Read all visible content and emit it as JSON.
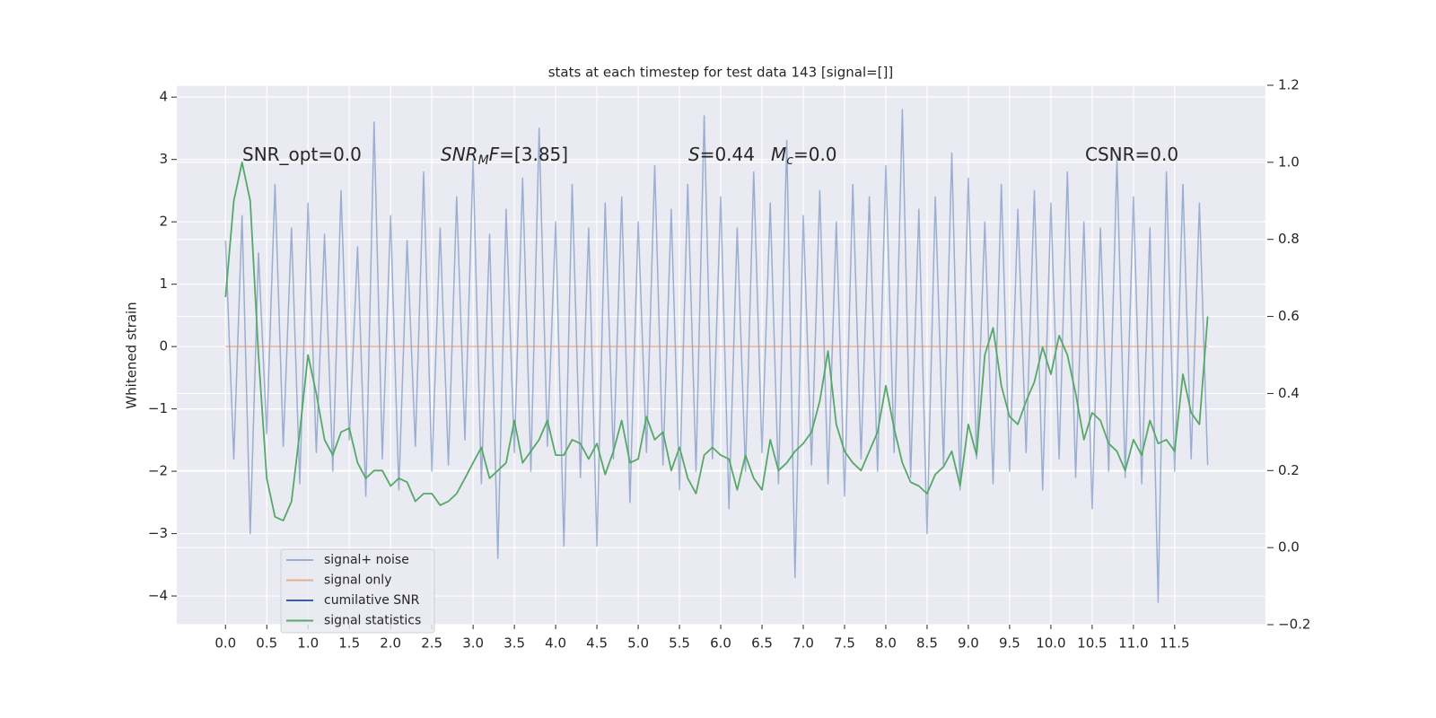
{
  "chart_data": {
    "type": "line",
    "title": "stats at each timestep for test data 143 [signal=[]]",
    "ylabel": "Whitened strain",
    "grid": true,
    "legend": "lower left",
    "xlim": [
      -0.59,
      12.6
    ],
    "ylim": [
      -4.46,
      4.19
    ],
    "y2lim": [
      -0.2,
      1.2
    ],
    "xticks": [
      {
        "value": 0,
        "label": "0.0"
      },
      {
        "value": 0.5,
        "label": "0.5"
      },
      {
        "value": 1,
        "label": "1.0"
      },
      {
        "value": 1.5,
        "label": "1.5"
      },
      {
        "value": 2,
        "label": "2.0"
      },
      {
        "value": 2.5,
        "label": "2.5"
      },
      {
        "value": 3,
        "label": "3.0"
      },
      {
        "value": 3.5,
        "label": "3.5"
      },
      {
        "value": 4,
        "label": "4.0"
      },
      {
        "value": 4.5,
        "label": "4.5"
      },
      {
        "value": 5,
        "label": "5.0"
      },
      {
        "value": 5.5,
        "label": "5.5"
      },
      {
        "value": 6,
        "label": "6.0"
      },
      {
        "value": 6.5,
        "label": "6.5"
      },
      {
        "value": 7,
        "label": "7.0"
      },
      {
        "value": 7.5,
        "label": "7.5"
      },
      {
        "value": 8,
        "label": "8.0"
      },
      {
        "value": 8.5,
        "label": "8.5"
      },
      {
        "value": 9,
        "label": "9.0"
      },
      {
        "value": 9.5,
        "label": "9.5"
      },
      {
        "value": 10,
        "label": "10.0"
      },
      {
        "value": 10.5,
        "label": "10.5"
      },
      {
        "value": 11,
        "label": "11.0"
      },
      {
        "value": 11.5,
        "label": "11.5"
      }
    ],
    "yticks": [
      {
        "value": -4,
        "label": "−4"
      },
      {
        "value": -3,
        "label": "−3"
      },
      {
        "value": -2,
        "label": "−2"
      },
      {
        "value": -1,
        "label": "−1"
      },
      0,
      1,
      2,
      3,
      4
    ],
    "y2ticks": [
      {
        "value": -0.2,
        "label": "−0.2"
      },
      {
        "value": 0,
        "label": "0.0"
      },
      {
        "value": 0.2,
        "label": "0.2"
      },
      {
        "value": 0.4,
        "label": "0.4"
      },
      {
        "value": 0.6,
        "label": "0.6"
      },
      {
        "value": 0.8,
        "label": "0.8"
      },
      {
        "value": 1,
        "label": "1.0"
      },
      {
        "value": 1.2,
        "label": "1.2"
      }
    ],
    "annotations": [
      [
        {
          "text": "SNR_opt=0.0"
        }
      ],
      [
        {
          "text": "SNR",
          "italic": true
        },
        {
          "text": "M",
          "italic": true,
          "sub": true
        },
        {
          "text": "F",
          "italic": true
        },
        {
          "text": "=[3.85]"
        }
      ],
      [
        {
          "text": "S",
          "italic": true
        },
        {
          "text": "=0.44"
        }
      ],
      [
        {
          "text": "M",
          "italic": true
        },
        {
          "text": "c",
          "italic": true,
          "sub": true
        },
        {
          "text": "=0.0"
        }
      ],
      [
        {
          "text": "CSNR=0.0"
        }
      ]
    ],
    "x": [
      0,
      0.1,
      0.2,
      0.3,
      0.4,
      0.5,
      0.6,
      0.7,
      0.8,
      0.9,
      1,
      1.1,
      1.2,
      1.3,
      1.4,
      1.5,
      1.6,
      1.7,
      1.8,
      1.9,
      2,
      2.1,
      2.2,
      2.3,
      2.4,
      2.5,
      2.6,
      2.7,
      2.8,
      2.9,
      3,
      3.1,
      3.2,
      3.3,
      3.4,
      3.5,
      3.6,
      3.7,
      3.8,
      3.9,
      4,
      4.1,
      4.2,
      4.3,
      4.4,
      4.5,
      4.6,
      4.7,
      4.8,
      4.9,
      5,
      5.1,
      5.2,
      5.3,
      5.4,
      5.5,
      5.6,
      5.7,
      5.8,
      5.9,
      6,
      6.1,
      6.2,
      6.3,
      6.4,
      6.5,
      6.6,
      6.7,
      6.8,
      6.9,
      7,
      7.1,
      7.2,
      7.3,
      7.4,
      7.5,
      7.6,
      7.7,
      7.8,
      7.9,
      8,
      8.1,
      8.2,
      8.3,
      8.4,
      8.5,
      8.6,
      8.7,
      8.8,
      8.9,
      9,
      9.1,
      9.2,
      9.3,
      9.4,
      9.5,
      9.6,
      9.7,
      9.8,
      9.9,
      10,
      10.1,
      10.2,
      10.3,
      10.4,
      10.5,
      10.6,
      10.7,
      10.8,
      10.9,
      11,
      11.1,
      11.2,
      11.3,
      11.4,
      11.5,
      11.6,
      11.7,
      11.8,
      11.9
    ],
    "series": [
      {
        "name": "signal+ noise",
        "color": "#4c72b0",
        "opacity": 0.5,
        "values": [
          1.7,
          -1.8,
          2.1,
          -3.0,
          1.5,
          -1.4,
          2.6,
          -1.6,
          1.9,
          -2.2,
          2.3,
          -1.7,
          1.8,
          -2.0,
          2.5,
          -1.5,
          1.6,
          -2.4,
          3.6,
          -1.8,
          2.1,
          -2.3,
          1.7,
          -1.6,
          2.8,
          -2.0,
          1.9,
          -1.9,
          2.4,
          -1.5,
          3.0,
          -2.2,
          1.8,
          -3.4,
          2.2,
          -1.7,
          2.7,
          -2.0,
          3.5,
          -1.6,
          2.0,
          -3.2,
          2.6,
          -2.1,
          1.9,
          -3.2,
          2.3,
          -1.8,
          2.4,
          -2.5,
          2.0,
          -1.7,
          2.9,
          -1.9,
          2.2,
          -2.3,
          2.6,
          -2.0,
          3.7,
          -1.8,
          2.4,
          -2.6,
          1.9,
          -2.0,
          2.8,
          -1.7,
          2.3,
          -2.2,
          3.3,
          -3.7,
          2.1,
          -1.9,
          2.5,
          -2.2,
          2.0,
          -2.4,
          2.6,
          -1.8,
          2.4,
          -2.0,
          2.9,
          -1.7,
          3.8,
          -2.1,
          2.2,
          -3.0,
          2.4,
          -1.9,
          3.1,
          -2.3,
          2.7,
          -1.8,
          2.0,
          -2.2,
          2.6,
          -2.0,
          2.2,
          -1.7,
          2.5,
          -2.3,
          2.3,
          -1.8,
          2.8,
          -2.1,
          2.0,
          -2.6,
          1.9,
          -2.0,
          3.0,
          -2.1,
          2.4,
          -2.2,
          1.9,
          -4.1,
          2.8,
          -2.0,
          2.6,
          -1.8,
          2.3,
          -1.9
        ]
      },
      {
        "name": "signal only",
        "color": "#dd8452",
        "opacity": 0.6,
        "values": [
          0,
          0,
          0,
          0,
          0,
          0,
          0,
          0,
          0,
          0,
          0,
          0,
          0,
          0,
          0,
          0,
          0,
          0,
          0,
          0,
          0,
          0,
          0,
          0,
          0,
          0,
          0,
          0,
          0,
          0,
          0,
          0,
          0,
          0,
          0,
          0,
          0,
          0,
          0,
          0,
          0,
          0,
          0,
          0,
          0,
          0,
          0,
          0,
          0,
          0,
          0,
          0,
          0,
          0,
          0,
          0,
          0,
          0,
          0,
          0,
          0,
          0,
          0,
          0,
          0,
          0,
          0,
          0,
          0,
          0,
          0,
          0,
          0,
          0,
          0,
          0,
          0,
          0,
          0,
          0,
          0,
          0,
          0,
          0,
          0,
          0,
          0,
          0,
          0,
          0,
          0,
          0,
          0,
          0,
          0,
          0,
          0,
          0,
          0,
          0,
          0,
          0,
          0,
          0,
          0,
          0,
          0,
          0,
          0,
          0,
          0,
          0,
          0,
          0,
          0,
          0,
          0,
          0,
          0,
          0
        ]
      },
      {
        "name": "cumilative SNR",
        "color": "#3a5da0"
      },
      {
        "name": "signal statistics",
        "color": "#55a868",
        "axis": "y2",
        "values": [
          0.65,
          0.9,
          1.0,
          0.9,
          0.5,
          0.18,
          0.08,
          0.07,
          0.12,
          0.3,
          0.5,
          0.4,
          0.28,
          0.24,
          0.3,
          0.31,
          0.22,
          0.18,
          0.2,
          0.2,
          0.16,
          0.18,
          0.17,
          0.12,
          0.14,
          0.14,
          0.11,
          0.12,
          0.14,
          0.18,
          0.22,
          0.26,
          0.18,
          0.2,
          0.22,
          0.33,
          0.22,
          0.25,
          0.28,
          0.33,
          0.24,
          0.24,
          0.28,
          0.27,
          0.23,
          0.27,
          0.19,
          0.25,
          0.33,
          0.22,
          0.23,
          0.34,
          0.28,
          0.3,
          0.2,
          0.26,
          0.18,
          0.14,
          0.24,
          0.26,
          0.24,
          0.23,
          0.15,
          0.24,
          0.18,
          0.15,
          0.28,
          0.2,
          0.22,
          0.25,
          0.27,
          0.3,
          0.38,
          0.51,
          0.32,
          0.25,
          0.22,
          0.2,
          0.25,
          0.3,
          0.42,
          0.31,
          0.22,
          0.17,
          0.16,
          0.14,
          0.19,
          0.21,
          0.25,
          0.16,
          0.32,
          0.24,
          0.5,
          0.57,
          0.42,
          0.34,
          0.32,
          0.38,
          0.43,
          0.52,
          0.45,
          0.55,
          0.5,
          0.4,
          0.28,
          0.35,
          0.33,
          0.27,
          0.25,
          0.2,
          0.28,
          0.24,
          0.33,
          0.27,
          0.28,
          0.25,
          0.45,
          0.35,
          0.32,
          0.6
        ]
      }
    ]
  }
}
